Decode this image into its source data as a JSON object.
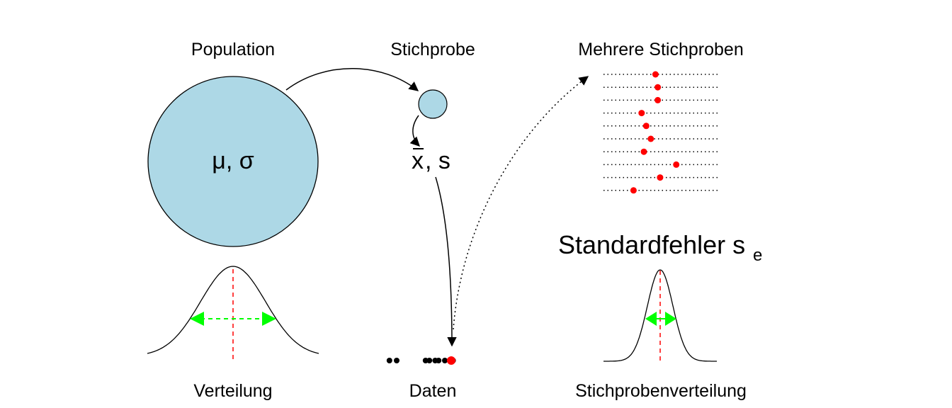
{
  "labels": {
    "population": "Population",
    "stichprobe": "Stichprobe",
    "mehrere": "Mehrere Stichproben",
    "verteilung": "Verteilung",
    "daten": "Daten",
    "stichprobenverteilung": "Stichprobenverteilung",
    "standardfehler": "Standardfehler s",
    "standardfehler_sub": "e",
    "population_params": "μ, σ",
    "sample_stat_symbol": "x",
    "sample_stat_rest": ", s"
  },
  "colors": {
    "circle_fill": "#add8e6",
    "mean_line": "#ff0000",
    "spread_arrow": "#00ff00",
    "sample_mean_point": "#ff0000",
    "data_point": "#000000"
  },
  "samples": {
    "count": 10,
    "means": [
      0.45,
      0.47,
      0.47,
      0.33,
      0.37,
      0.41,
      0.35,
      0.63,
      0.49,
      0.26
    ]
  },
  "data_points": [
    -0.9,
    -0.75,
    -0.15,
    -0.07,
    0.05,
    0.12,
    0.25,
    0.35,
    0.42
  ],
  "data_mean": 0.0
}
